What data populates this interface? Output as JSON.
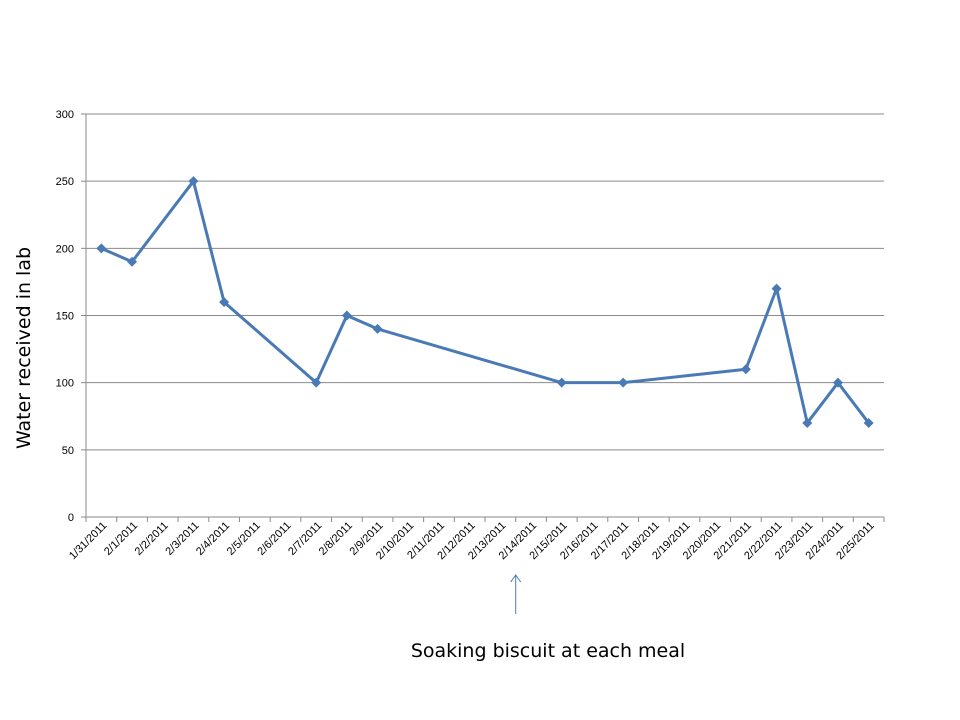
{
  "chart_data": {
    "type": "line",
    "title": "",
    "xlabel": "",
    "ylabel": "Water received in lab",
    "ylim": [
      0,
      300
    ],
    "yticks": [
      0,
      50,
      100,
      150,
      200,
      250,
      300
    ],
    "grid": true,
    "legend": "none",
    "categories": [
      "1/31/2011",
      "2/1/2011",
      "2/2/2011",
      "2/3/2011",
      "2/4/2011",
      "2/5/2011",
      "2/6/2011",
      "2/7/2011",
      "2/8/2011",
      "2/9/2011",
      "2/10/2011",
      "2/11/2011",
      "2/12/2011",
      "2/13/2011",
      "2/14/2011",
      "2/15/2011",
      "2/16/2011",
      "2/17/2011",
      "2/18/2011",
      "2/19/2011",
      "2/20/2011",
      "2/21/2011",
      "2/22/2011",
      "2/23/2011",
      "2/24/2011",
      "2/25/2011"
    ],
    "series": [
      {
        "color": "#4a7ab5",
        "points": [
          {
            "x": "1/31/2011",
            "y": 200
          },
          {
            "x": "2/1/2011",
            "y": 190
          },
          {
            "x": "2/3/2011",
            "y": 250
          },
          {
            "x": "2/4/2011",
            "y": 160
          },
          {
            "x": "2/7/2011",
            "y": 100
          },
          {
            "x": "2/8/2011",
            "y": 150
          },
          {
            "x": "2/9/2011",
            "y": 140
          },
          {
            "x": "2/15/2011",
            "y": 100
          },
          {
            "x": "2/17/2011",
            "y": 100
          },
          {
            "x": "2/21/2011",
            "y": 110
          },
          {
            "x": "2/22/2011",
            "y": 170
          },
          {
            "x": "2/23/2011",
            "y": 70
          },
          {
            "x": "2/24/2011",
            "y": 100
          },
          {
            "x": "2/25/2011",
            "y": 70
          }
        ]
      }
    ],
    "annotations": [
      {
        "text": "Soaking biscuit at each meal",
        "points_to": "2/14/2011"
      }
    ]
  }
}
